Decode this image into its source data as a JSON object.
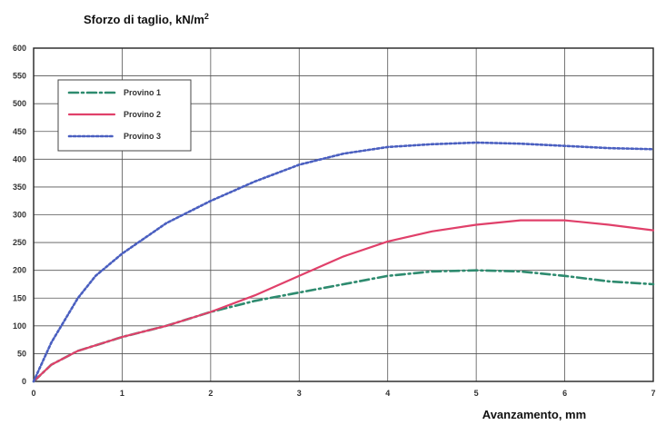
{
  "chart_data": {
    "type": "line",
    "ylabel": "Sforzo di taglio, kN/m",
    "ylabel_sup": "2",
    "xlabel": "Avanzamento, mm",
    "xlim": [
      0,
      7
    ],
    "ylim": [
      0,
      600
    ],
    "xticks": [
      0,
      1,
      2,
      3,
      4,
      5,
      6,
      7
    ],
    "yticks": [
      0,
      50,
      100,
      150,
      200,
      250,
      300,
      350,
      400,
      450,
      500,
      550,
      600
    ],
    "grid": true,
    "legend_position": "top-left",
    "series": [
      {
        "name": "Provino 1",
        "color": "#2e8b6f",
        "style": "dash-dot",
        "x": [
          0,
          0.2,
          0.5,
          1,
          1.5,
          2,
          2.5,
          3,
          3.5,
          4,
          4.5,
          5,
          5.5,
          6,
          6.5,
          7
        ],
        "y": [
          0,
          30,
          55,
          80,
          100,
          125,
          145,
          160,
          175,
          190,
          198,
          200,
          198,
          190,
          180,
          175
        ]
      },
      {
        "name": "Provino 2",
        "color": "#e0406a",
        "style": "solid",
        "x": [
          0,
          0.2,
          0.5,
          1,
          1.5,
          2,
          2.5,
          3,
          3.5,
          4,
          4.5,
          5,
          5.5,
          6,
          6.5,
          7
        ],
        "y": [
          0,
          30,
          55,
          80,
          100,
          125,
          155,
          190,
          225,
          252,
          270,
          282,
          290,
          290,
          282,
          272
        ]
      },
      {
        "name": "Provino 3",
        "color": "#4a5fc0",
        "style": "dotted",
        "x": [
          0,
          0.2,
          0.5,
          0.7,
          1,
          1.5,
          2,
          2.5,
          3,
          3.5,
          4,
          4.5,
          5,
          5.5,
          6,
          6.5,
          7
        ],
        "y": [
          0,
          70,
          150,
          190,
          230,
          285,
          325,
          360,
          390,
          410,
          422,
          427,
          430,
          428,
          424,
          420,
          418
        ]
      }
    ]
  }
}
